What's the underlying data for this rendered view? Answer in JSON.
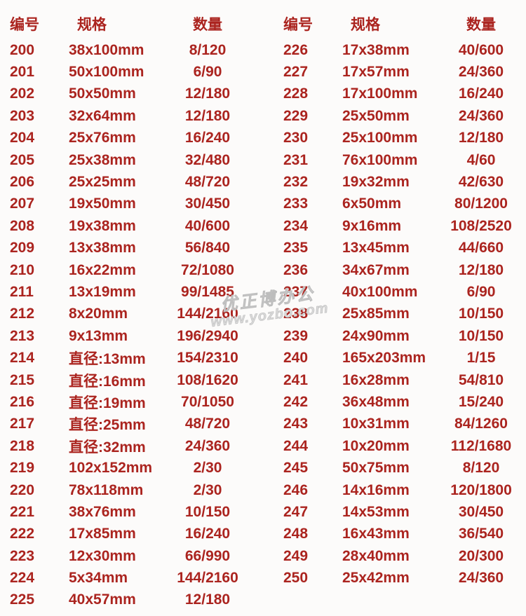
{
  "watermark": {
    "line1": "优正博办公",
    "line2": "www.yozbo.com"
  },
  "accent_color": "#ab241f",
  "table": {
    "headers": {
      "id": "编号",
      "spec": "规格",
      "qty": "数量"
    },
    "groups": [
      {
        "rows": [
          [
            "200",
            "38x100mm",
            "8/120"
          ],
          [
            "201",
            "50x100mm",
            "6/90"
          ],
          [
            "202",
            "50x50mm",
            "12/180"
          ],
          [
            "203",
            "32x64mm",
            "12/180"
          ],
          [
            "204",
            "25x76mm",
            "16/240"
          ],
          [
            "205",
            "25x38mm",
            "32/480"
          ],
          [
            "206",
            "25x25mm",
            "48/720"
          ],
          [
            "207",
            "19x50mm",
            "30/450"
          ],
          [
            "208",
            "19x38mm",
            "40/600"
          ],
          [
            "209",
            "13x38mm",
            "56/840"
          ],
          [
            "210",
            "16x22mm",
            "72/1080"
          ],
          [
            "211",
            "13x19mm",
            "99/1485"
          ],
          [
            "212",
            "8x20mm",
            "144/2160"
          ],
          [
            "213",
            "9x13mm",
            "196/2940"
          ],
          [
            "214",
            "直径:13mm",
            "154/2310"
          ],
          [
            "215",
            "直径:16mm",
            "108/1620"
          ],
          [
            "216",
            "直径:19mm",
            "70/1050"
          ],
          [
            "217",
            "直径:25mm",
            "48/720"
          ],
          [
            "218",
            "直径:32mm",
            "24/360"
          ],
          [
            "219",
            "102x152mm",
            "2/30"
          ],
          [
            "220",
            "78x118mm",
            "2/30"
          ],
          [
            "221",
            "38x76mm",
            "10/150"
          ],
          [
            "222",
            "17x85mm",
            "16/240"
          ],
          [
            "223",
            "12x30mm",
            "66/990"
          ],
          [
            "224",
            "5x34mm",
            "144/2160"
          ],
          [
            "225",
            "40x57mm",
            "12/180"
          ]
        ]
      },
      {
        "rows": [
          [
            "226",
            "17x38mm",
            "40/600"
          ],
          [
            "227",
            "17x57mm",
            "24/360"
          ],
          [
            "228",
            "17x100mm",
            "16/240"
          ],
          [
            "229",
            "25x50mm",
            "24/360"
          ],
          [
            "230",
            "25x100mm",
            "12/180"
          ],
          [
            "231",
            "76x100mm",
            "4/60"
          ],
          [
            "232",
            "19x32mm",
            "42/630"
          ],
          [
            "233",
            "6x50mm",
            "80/1200"
          ],
          [
            "234",
            "9x16mm",
            "108/2520"
          ],
          [
            "235",
            "13x45mm",
            "44/660"
          ],
          [
            "236",
            "34x67mm",
            "12/180"
          ],
          [
            "237",
            "40x100mm",
            "6/90"
          ],
          [
            "238",
            "25x85mm",
            "10/150"
          ],
          [
            "239",
            "24x90mm",
            "10/150"
          ],
          [
            "240",
            "165x203mm",
            "1/15"
          ],
          [
            "241",
            "16x28mm",
            "54/810"
          ],
          [
            "242",
            "36x48mm",
            "15/240"
          ],
          [
            "243",
            "10x31mm",
            "84/1260"
          ],
          [
            "244",
            "10x20mm",
            "112/1680"
          ],
          [
            "245",
            "50x75mm",
            "8/120"
          ],
          [
            "246",
            "14x16mm",
            "120/1800"
          ],
          [
            "247",
            "14x53mm",
            "30/450"
          ],
          [
            "248",
            "16x43mm",
            "36/540"
          ],
          [
            "249",
            "28x40mm",
            "20/300"
          ],
          [
            "250",
            "25x42mm",
            "24/360"
          ]
        ]
      }
    ]
  }
}
